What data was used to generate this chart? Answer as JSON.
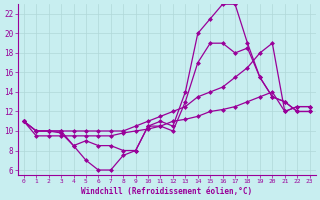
{
  "xlabel": "Windchill (Refroidissement éolien,°C)",
  "background_color": "#c8eef0",
  "line_color": "#990099",
  "grid_color": "#b0d8d8",
  "xlim": [
    -0.5,
    23.5
  ],
  "ylim": [
    5.5,
    23
  ],
  "xticks": [
    0,
    1,
    2,
    3,
    4,
    5,
    6,
    7,
    8,
    9,
    10,
    11,
    12,
    13,
    14,
    15,
    16,
    17,
    18,
    19,
    20,
    21,
    22,
    23
  ],
  "yticks": [
    6,
    8,
    10,
    12,
    14,
    16,
    18,
    20,
    22
  ],
  "line1_x": [
    0,
    1,
    2,
    3,
    4,
    5,
    6,
    7,
    8,
    9,
    10,
    11,
    12,
    13,
    14,
    15,
    16,
    17,
    18,
    19,
    20,
    21,
    22,
    23
  ],
  "line1_y": [
    11,
    10,
    10,
    10,
    8.5,
    7,
    6,
    6,
    7.5,
    8,
    10.5,
    11,
    10.5,
    14,
    20,
    21.5,
    23,
    23,
    19,
    15.5,
    13.5,
    13,
    12,
    12
  ],
  "line2_x": [
    0,
    1,
    2,
    3,
    4,
    5,
    6,
    7,
    8,
    9,
    10,
    11,
    12,
    13,
    14,
    15,
    16,
    17,
    18,
    19,
    20,
    21,
    22,
    23
  ],
  "line2_y": [
    11,
    10,
    10,
    9.8,
    8.5,
    9,
    8.5,
    8.5,
    8,
    8,
    10.5,
    10.5,
    10,
    13,
    17,
    19,
    19,
    18,
    18.5,
    15.5,
    13.5,
    13,
    12,
    12
  ],
  "line3_x": [
    0,
    1,
    2,
    3,
    4,
    5,
    6,
    7,
    8,
    9,
    10,
    11,
    12,
    13,
    14,
    15,
    16,
    17,
    18,
    19,
    20,
    21,
    22,
    23
  ],
  "line3_y": [
    11,
    10,
    10,
    10,
    10,
    10,
    10,
    10,
    10,
    10.5,
    11,
    11.5,
    12,
    12.5,
    13.5,
    14,
    14.5,
    15.5,
    16.5,
    18,
    19,
    12,
    12.5,
    12.5
  ],
  "line4_x": [
    0,
    1,
    2,
    3,
    4,
    5,
    6,
    7,
    8,
    9,
    10,
    11,
    12,
    13,
    14,
    15,
    16,
    17,
    18,
    19,
    20,
    21,
    22,
    23
  ],
  "line4_y": [
    11,
    9.5,
    9.5,
    9.5,
    9.5,
    9.5,
    9.5,
    9.5,
    9.8,
    10,
    10.2,
    10.5,
    11,
    11.2,
    11.5,
    12,
    12.2,
    12.5,
    13,
    13.5,
    14,
    12,
    12.5,
    12.5
  ]
}
